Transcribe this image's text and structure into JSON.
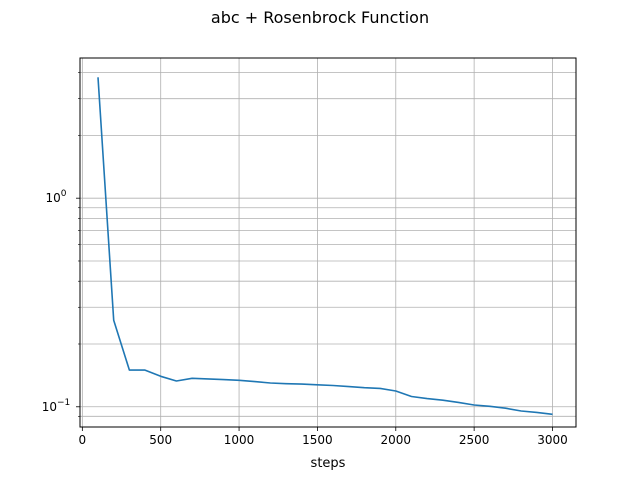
{
  "chart_data": {
    "type": "line",
    "title": "abc + Rosenbrock Function",
    "xlabel": "steps",
    "ylabel": "",
    "yscale": "log",
    "xlim": [
      -15,
      3150
    ],
    "ylim": [
      0.08,
      4.7
    ],
    "grid": true,
    "grid_minor_y": true,
    "line_color": "#1f77b4",
    "x_ticks": [
      0,
      500,
      1000,
      1500,
      2000,
      2500,
      3000
    ],
    "x_tick_labels": [
      "0",
      "500",
      "1000",
      "1500",
      "2000",
      "2500",
      "3000"
    ],
    "y_ticks": [
      {
        "value": 1,
        "base": "10",
        "exp": "0"
      },
      {
        "value": 0.1,
        "base": "10",
        "exp": "−1"
      }
    ],
    "series": [
      {
        "x": [
          100,
          200,
          300,
          400,
          500,
          600,
          700,
          800,
          900,
          1000,
          1100,
          1200,
          1300,
          1400,
          1500,
          1600,
          1700,
          1800,
          1900,
          2000,
          2100,
          2200,
          2300,
          2400,
          2500,
          2600,
          2700,
          2800,
          2900,
          3000
        ],
        "values": [
          3.8,
          0.26,
          0.15,
          0.15,
          0.14,
          0.133,
          0.137,
          0.136,
          0.135,
          0.134,
          0.132,
          0.13,
          0.129,
          0.1285,
          0.1275,
          0.1265,
          0.125,
          0.1235,
          0.1225,
          0.119,
          0.112,
          0.1095,
          0.1075,
          0.105,
          0.102,
          0.1005,
          0.0985,
          0.0955,
          0.094,
          0.092
        ]
      }
    ]
  }
}
